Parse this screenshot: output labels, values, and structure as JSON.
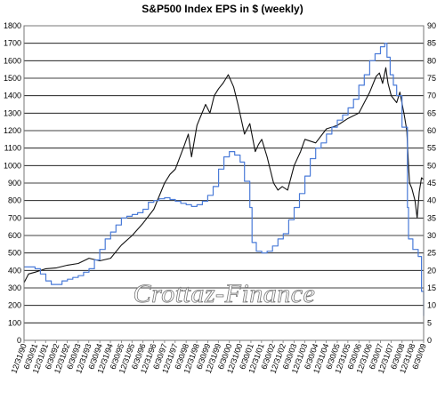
{
  "chart_data": {
    "type": "line",
    "title": "S&P500 Index EPS in $ (weekly)",
    "watermark": "Crottaz-Finance",
    "left_axis": {
      "ylim": [
        0,
        1800
      ],
      "ticks": [
        0,
        100,
        200,
        300,
        400,
        500,
        600,
        700,
        800,
        900,
        1000,
        1100,
        1200,
        1300,
        1400,
        1500,
        1600,
        1700,
        1800
      ]
    },
    "right_axis": {
      "ylim": [
        0,
        90
      ],
      "ticks": [
        0,
        5,
        10,
        15,
        20,
        25,
        30,
        35,
        40,
        45,
        50,
        55,
        60,
        65,
        70,
        75,
        80,
        85,
        90
      ]
    },
    "x_ticks": [
      "12/31/90",
      "6/30/91",
      "12/31/91",
      "6/30/92",
      "12/31/92",
      "6/30/93",
      "12/31/93",
      "6/30/94",
      "12/31/94",
      "6/30/95",
      "12/31/95",
      "6/30/96",
      "12/31/96",
      "6/30/97",
      "12/31/97",
      "6/30/98",
      "12/31/98",
      "6/30/99",
      "12/31/99",
      "6/30/00",
      "12/31/00",
      "6/30/01",
      "12/31/01",
      "6/30/02",
      "12/31/02",
      "6/30/03",
      "12/31/03",
      "6/30/04",
      "12/31/04",
      "6/30/05",
      "12/31/05",
      "6/30/06",
      "12/31/06",
      "6/30/07",
      "12/31/07",
      "6/30/08",
      "12/31/08",
      "6/30/09"
    ],
    "grid": true,
    "colors": {
      "index_line": "#111111",
      "eps_line": "#4a7bd8",
      "grid": "#000000"
    },
    "series": [
      {
        "axis": "left",
        "x": [
          1990.99,
          1991.2,
          1991.5,
          1992.0,
          1992.5,
          1993.0,
          1993.5,
          1994.0,
          1994.5,
          1995.0,
          1995.5,
          1996.0,
          1996.5,
          1997.0,
          1997.5,
          1997.75,
          1998.0,
          1998.4,
          1998.6,
          1998.75,
          1999.0,
          1999.4,
          1999.6,
          1999.8,
          2000.0,
          2000.2,
          2000.45,
          2000.7,
          2000.9,
          2001.2,
          2001.45,
          2001.7,
          2001.85,
          2002.0,
          2002.25,
          2002.55,
          2002.75,
          2002.95,
          2003.2,
          2003.5,
          2003.8,
          2004.0,
          2004.5,
          2005.0,
          2005.5,
          2006.0,
          2006.5,
          2007.0,
          2007.3,
          2007.45,
          2007.6,
          2007.75,
          2007.85,
          2008.0,
          2008.25,
          2008.4,
          2008.6,
          2008.72,
          2008.8,
          2008.85,
          2008.95,
          2009.1,
          2009.2,
          2009.3,
          2009.4,
          2009.5
        ],
        "y": [
          330,
          380,
          390,
          410,
          415,
          430,
          440,
          470,
          455,
          470,
          545,
          600,
          670,
          750,
          900,
          950,
          980,
          1110,
          1180,
          1050,
          1230,
          1350,
          1300,
          1400,
          1440,
          1470,
          1520,
          1450,
          1350,
          1180,
          1240,
          1080,
          1120,
          1150,
          1050,
          900,
          860,
          880,
          860,
          1000,
          1080,
          1150,
          1130,
          1210,
          1230,
          1270,
          1300,
          1420,
          1510,
          1530,
          1470,
          1560,
          1470,
          1400,
          1360,
          1420,
          1290,
          1200,
          1000,
          900,
          870,
          800,
          700,
          850,
          930,
          920
        ]
      },
      {
        "axis": "right",
        "step": true,
        "x": [
          1990.99,
          1991.25,
          1991.5,
          1991.75,
          1992.0,
          1992.25,
          1992.5,
          1992.75,
          1993.0,
          1993.25,
          1993.5,
          1993.75,
          1994.0,
          1994.25,
          1994.5,
          1994.75,
          1995.0,
          1995.25,
          1995.5,
          1995.75,
          1996.0,
          1996.25,
          1996.5,
          1996.75,
          1997.0,
          1997.25,
          1997.5,
          1997.75,
          1998.0,
          1998.25,
          1998.5,
          1998.75,
          1999.0,
          1999.25,
          1999.5,
          1999.75,
          2000.0,
          2000.25,
          2000.5,
          2000.75,
          2001.0,
          2001.2,
          2001.45,
          2001.55,
          2001.75,
          2002.0,
          2002.25,
          2002.5,
          2002.75,
          2003.0,
          2003.25,
          2003.5,
          2003.75,
          2004.0,
          2004.25,
          2004.5,
          2004.75,
          2005.0,
          2005.25,
          2005.5,
          2005.75,
          2006.0,
          2006.25,
          2006.5,
          2006.75,
          2007.0,
          2007.25,
          2007.5,
          2007.7,
          2007.8,
          2007.95,
          2008.1,
          2008.25,
          2008.5,
          2008.75,
          2008.8,
          2009.0,
          2009.25,
          2009.4,
          2009.5
        ],
        "y": [
          21,
          21,
          20.5,
          19,
          17,
          16,
          16,
          17,
          17.5,
          18,
          18.5,
          19.5,
          20.5,
          23,
          26,
          29,
          31,
          33,
          35,
          35.5,
          36,
          36.5,
          37.5,
          39.5,
          40,
          40.5,
          40.8,
          40.3,
          39.8,
          39.2,
          38.8,
          38.3,
          38.8,
          39.8,
          41.5,
          44,
          49,
          52.5,
          54,
          53,
          51,
          45.5,
          38,
          28,
          25.5,
          25,
          25.5,
          27,
          29,
          30.5,
          34.5,
          38,
          42,
          47,
          52,
          55,
          56.5,
          59,
          61,
          63,
          64.5,
          66.5,
          69,
          73,
          76,
          80,
          82,
          84,
          85,
          81,
          76,
          73,
          70,
          61,
          38,
          29,
          26,
          24,
          14,
          7
        ]
      }
    ]
  }
}
